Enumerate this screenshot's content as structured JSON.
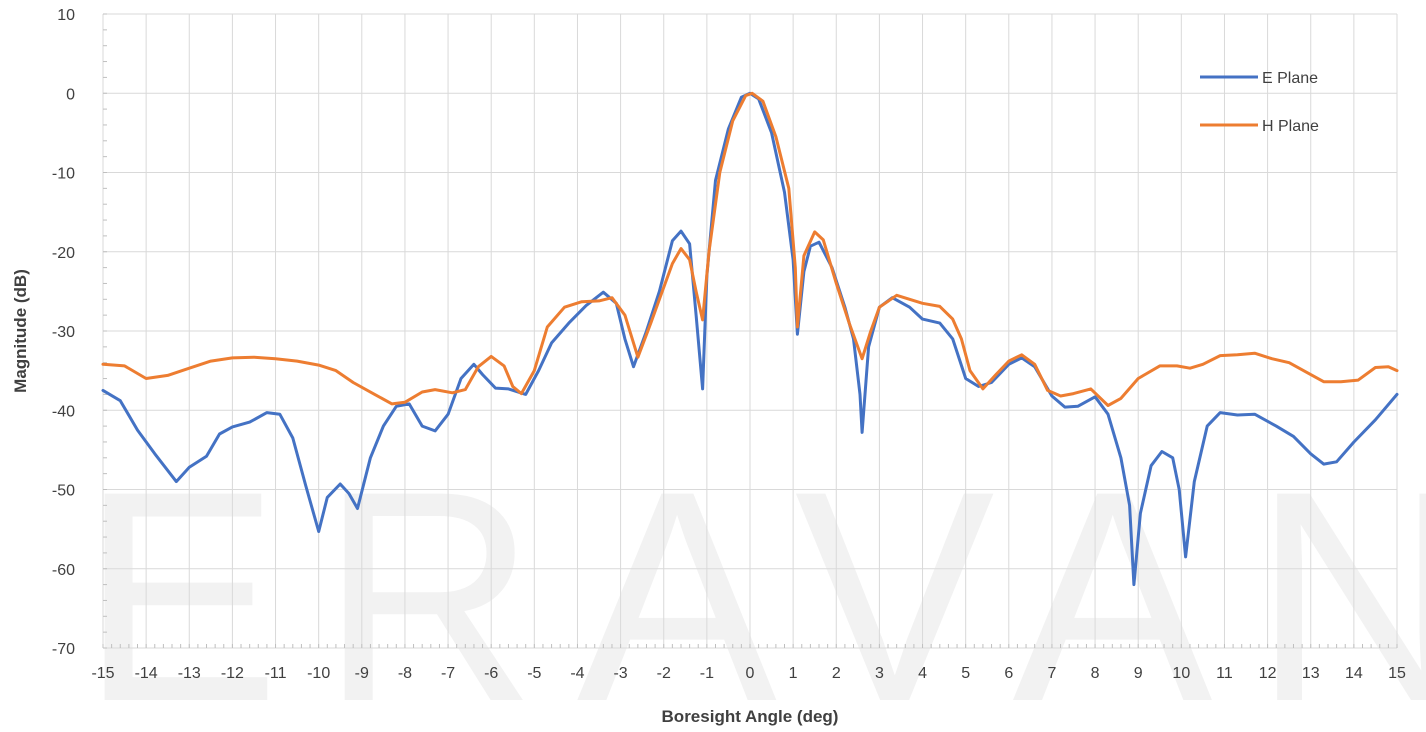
{
  "watermark": "ERAVANT",
  "chart_data": {
    "type": "line",
    "title": "",
    "xlabel": "Boresight Angle (deg)",
    "ylabel": "Magnitude (dB)",
    "xlim": [
      -15,
      15
    ],
    "ylim": [
      -70,
      10
    ],
    "xticks": [
      -15,
      -14,
      -13,
      -12,
      -11,
      -10,
      -9,
      -8,
      -7,
      -6,
      -5,
      -4,
      -3,
      -2,
      -1,
      0,
      1,
      2,
      3,
      4,
      5,
      6,
      7,
      8,
      9,
      10,
      11,
      12,
      13,
      14,
      15
    ],
    "yticks": [
      10,
      0,
      -10,
      -20,
      -30,
      -40,
      -50,
      -60,
      -70
    ],
    "grid": true,
    "legend_position": "top-right",
    "series": [
      {
        "name": "E Plane",
        "color": "#4472C4",
        "points": [
          [
            -15,
            -37.5
          ],
          [
            -14.6,
            -38.8
          ],
          [
            -14.2,
            -42.5
          ],
          [
            -13.8,
            -45.5
          ],
          [
            -13.3,
            -49
          ],
          [
            -13,
            -47.2
          ],
          [
            -12.6,
            -45.8
          ],
          [
            -12.3,
            -43
          ],
          [
            -12,
            -42.1
          ],
          [
            -11.6,
            -41.5
          ],
          [
            -11.2,
            -40.3
          ],
          [
            -10.9,
            -40.5
          ],
          [
            -10.6,
            -43.5
          ],
          [
            -10.3,
            -49.5
          ],
          [
            -10,
            -55.3
          ],
          [
            -9.8,
            -51
          ],
          [
            -9.5,
            -49.3
          ],
          [
            -9.3,
            -50.5
          ],
          [
            -9.1,
            -52.4
          ],
          [
            -8.8,
            -46
          ],
          [
            -8.5,
            -42
          ],
          [
            -8.2,
            -39.5
          ],
          [
            -7.9,
            -39.2
          ],
          [
            -7.6,
            -42
          ],
          [
            -7.3,
            -42.6
          ],
          [
            -7,
            -40.5
          ],
          [
            -6.7,
            -36
          ],
          [
            -6.4,
            -34.2
          ],
          [
            -6.2,
            -35.5
          ],
          [
            -5.9,
            -37.2
          ],
          [
            -5.6,
            -37.3
          ],
          [
            -5.2,
            -38
          ],
          [
            -4.9,
            -35
          ],
          [
            -4.6,
            -31.5
          ],
          [
            -4.2,
            -29
          ],
          [
            -3.8,
            -26.8
          ],
          [
            -3.4,
            -25.1
          ],
          [
            -3.1,
            -26.5
          ],
          [
            -2.9,
            -31
          ],
          [
            -2.7,
            -34.5
          ],
          [
            -2.4,
            -30
          ],
          [
            -2.1,
            -25
          ],
          [
            -1.8,
            -18.6
          ],
          [
            -1.6,
            -17.4
          ],
          [
            -1.4,
            -19
          ],
          [
            -1.25,
            -28
          ],
          [
            -1.1,
            -37.3
          ],
          [
            -1,
            -23
          ],
          [
            -0.8,
            -11
          ],
          [
            -0.5,
            -4.5
          ],
          [
            -0.2,
            -0.5
          ],
          [
            0,
            0
          ],
          [
            0.2,
            -0.7
          ],
          [
            0.5,
            -5
          ],
          [
            0.8,
            -12.5
          ],
          [
            1,
            -21
          ],
          [
            1.1,
            -30.4
          ],
          [
            1.25,
            -22.5
          ],
          [
            1.4,
            -19.3
          ],
          [
            1.6,
            -18.8
          ],
          [
            1.9,
            -22
          ],
          [
            2.2,
            -27
          ],
          [
            2.4,
            -31
          ],
          [
            2.55,
            -38
          ],
          [
            2.6,
            -42.8
          ],
          [
            2.75,
            -32
          ],
          [
            3,
            -27
          ],
          [
            3.3,
            -25.8
          ],
          [
            3.7,
            -27
          ],
          [
            4,
            -28.5
          ],
          [
            4.4,
            -29
          ],
          [
            4.7,
            -31
          ],
          [
            5,
            -36
          ],
          [
            5.3,
            -37
          ],
          [
            5.6,
            -36.5
          ],
          [
            6,
            -34.2
          ],
          [
            6.3,
            -33.4
          ],
          [
            6.6,
            -34.5
          ],
          [
            7,
            -38.2
          ],
          [
            7.3,
            -39.6
          ],
          [
            7.6,
            -39.5
          ],
          [
            8,
            -38.3
          ],
          [
            8.3,
            -40.5
          ],
          [
            8.6,
            -46
          ],
          [
            8.8,
            -52
          ],
          [
            8.9,
            -62
          ],
          [
            9.05,
            -53
          ],
          [
            9.3,
            -47
          ],
          [
            9.55,
            -45.2
          ],
          [
            9.8,
            -46
          ],
          [
            9.95,
            -50
          ],
          [
            10.1,
            -58.5
          ],
          [
            10.3,
            -49
          ],
          [
            10.6,
            -42
          ],
          [
            10.9,
            -40.3
          ],
          [
            11.3,
            -40.6
          ],
          [
            11.7,
            -40.5
          ],
          [
            12.2,
            -42
          ],
          [
            12.6,
            -43.3
          ],
          [
            13,
            -45.5
          ],
          [
            13.3,
            -46.8
          ],
          [
            13.6,
            -46.5
          ],
          [
            14,
            -44
          ],
          [
            14.5,
            -41.2
          ],
          [
            15,
            -38
          ]
        ]
      },
      {
        "name": "H Plane",
        "color": "#ED7D31",
        "points": [
          [
            -15,
            -34.2
          ],
          [
            -14.5,
            -34.4
          ],
          [
            -14,
            -36
          ],
          [
            -13.5,
            -35.6
          ],
          [
            -13,
            -34.7
          ],
          [
            -12.5,
            -33.8
          ],
          [
            -12,
            -33.4
          ],
          [
            -11.5,
            -33.3
          ],
          [
            -11,
            -33.5
          ],
          [
            -10.5,
            -33.8
          ],
          [
            -10,
            -34.3
          ],
          [
            -9.6,
            -35
          ],
          [
            -9.2,
            -36.5
          ],
          [
            -8.7,
            -38
          ],
          [
            -8.3,
            -39.2
          ],
          [
            -8,
            -39
          ],
          [
            -7.6,
            -37.7
          ],
          [
            -7.3,
            -37.4
          ],
          [
            -6.9,
            -37.8
          ],
          [
            -6.6,
            -37.4
          ],
          [
            -6.3,
            -34.5
          ],
          [
            -6,
            -33.2
          ],
          [
            -5.7,
            -34.4
          ],
          [
            -5.5,
            -37
          ],
          [
            -5.3,
            -37.9
          ],
          [
            -5,
            -35
          ],
          [
            -4.7,
            -29.5
          ],
          [
            -4.3,
            -27
          ],
          [
            -3.9,
            -26.3
          ],
          [
            -3.5,
            -26.2
          ],
          [
            -3.2,
            -25.8
          ],
          [
            -2.9,
            -28
          ],
          [
            -2.6,
            -33.3
          ],
          [
            -2.3,
            -29
          ],
          [
            -2.1,
            -26
          ],
          [
            -1.8,
            -21.5
          ],
          [
            -1.6,
            -19.6
          ],
          [
            -1.4,
            -21
          ],
          [
            -1.25,
            -25
          ],
          [
            -1.1,
            -28.6
          ],
          [
            -0.95,
            -20
          ],
          [
            -0.7,
            -10
          ],
          [
            -0.4,
            -3.5
          ],
          [
            -0.1,
            -0.3
          ],
          [
            0.05,
            0
          ],
          [
            0.3,
            -1
          ],
          [
            0.6,
            -5.5
          ],
          [
            0.9,
            -12
          ],
          [
            1.05,
            -22
          ],
          [
            1.1,
            -29.5
          ],
          [
            1.25,
            -20.5
          ],
          [
            1.5,
            -17.5
          ],
          [
            1.7,
            -18.5
          ],
          [
            2,
            -24
          ],
          [
            2.3,
            -29
          ],
          [
            2.6,
            -33.5
          ],
          [
            2.8,
            -30
          ],
          [
            3,
            -27
          ],
          [
            3.4,
            -25.5
          ],
          [
            3.7,
            -26
          ],
          [
            4,
            -26.5
          ],
          [
            4.4,
            -26.9
          ],
          [
            4.7,
            -28.5
          ],
          [
            4.9,
            -31
          ],
          [
            5.1,
            -35
          ],
          [
            5.4,
            -37.3
          ],
          [
            5.7,
            -35.5
          ],
          [
            6,
            -33.8
          ],
          [
            6.3,
            -33
          ],
          [
            6.6,
            -34.2
          ],
          [
            6.9,
            -37.5
          ],
          [
            7.2,
            -38.2
          ],
          [
            7.5,
            -37.9
          ],
          [
            7.9,
            -37.3
          ],
          [
            8.3,
            -39.4
          ],
          [
            8.6,
            -38.5
          ],
          [
            9,
            -36
          ],
          [
            9.5,
            -34.4
          ],
          [
            9.9,
            -34.4
          ],
          [
            10.2,
            -34.7
          ],
          [
            10.5,
            -34.2
          ],
          [
            10.9,
            -33.1
          ],
          [
            11.3,
            -33
          ],
          [
            11.7,
            -32.8
          ],
          [
            12.1,
            -33.5
          ],
          [
            12.5,
            -34
          ],
          [
            12.9,
            -35.2
          ],
          [
            13.3,
            -36.4
          ],
          [
            13.7,
            -36.4
          ],
          [
            14.1,
            -36.2
          ],
          [
            14.5,
            -34.6
          ],
          [
            14.8,
            -34.5
          ],
          [
            15,
            -35
          ]
        ]
      }
    ]
  }
}
